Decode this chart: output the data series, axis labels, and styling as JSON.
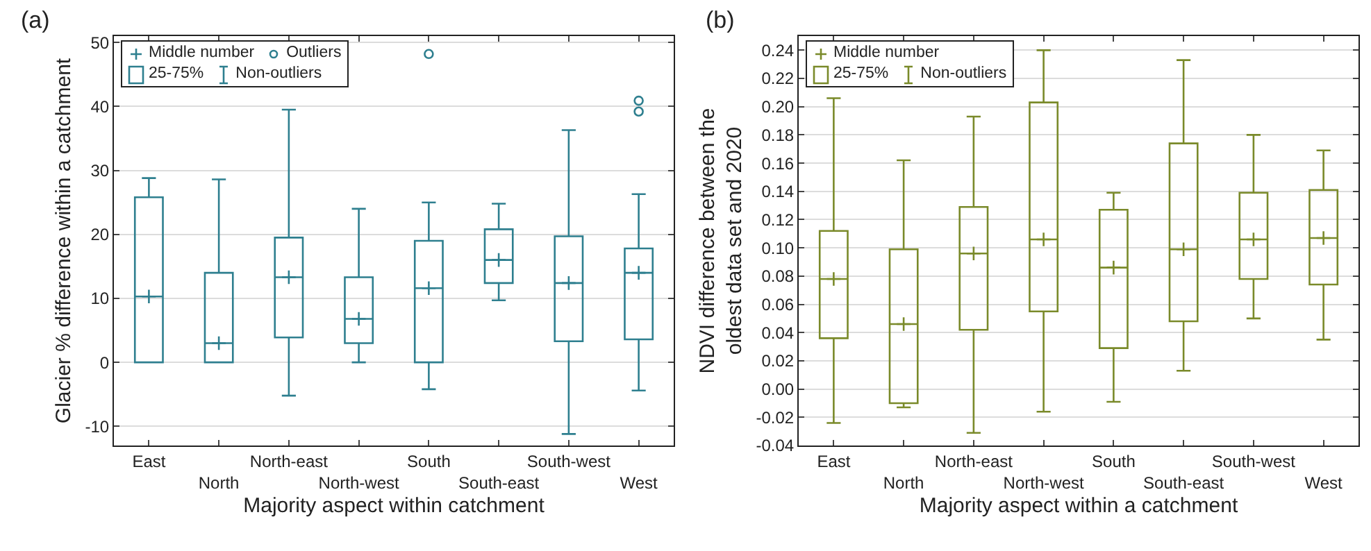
{
  "chart_data": [
    {
      "type": "box",
      "title": "(a)",
      "xlabel": "Majority aspect within catchment",
      "ylabel": "Glacier % difference within a catchment",
      "categories": [
        "East",
        "North",
        "North-east",
        "North-west",
        "South",
        "South-east",
        "South-west",
        "West"
      ],
      "color": "#2e7f8f",
      "boxes": [
        {
          "low": 0,
          "q1": 0,
          "median": 10.3,
          "q3": 25.8,
          "high": 28.8
        },
        {
          "low": 0,
          "q1": 0,
          "median": 3,
          "q3": 14,
          "high": 28.6
        },
        {
          "low": -5.2,
          "q1": 3.9,
          "median": 13.3,
          "q3": 19.5,
          "high": 39.5
        },
        {
          "low": 0,
          "q1": 3,
          "median": 6.8,
          "q3": 13.3,
          "high": 24
        },
        {
          "low": -4.2,
          "q1": 0,
          "median": 11.6,
          "q3": 19,
          "high": 25,
          "outliers": [
            48.2
          ]
        },
        {
          "low": 9.7,
          "q1": 12.4,
          "median": 16,
          "q3": 20.8,
          "high": 24.8
        },
        {
          "low": -11.2,
          "q1": 3.3,
          "median": 12.4,
          "q3": 19.7,
          "high": 36.3
        },
        {
          "low": -4.4,
          "q1": 3.6,
          "median": 14,
          "q3": 17.8,
          "high": 26.3,
          "outliers": [
            39.2,
            40.9
          ]
        }
      ],
      "ylim": [
        -13,
        51
      ],
      "yticks": [
        {
          "value": -10,
          "label": "-10"
        },
        0,
        10,
        20,
        30,
        40,
        50
      ],
      "grid": "y",
      "annotations": [
        "Middle number",
        "Outliers",
        "25-75%",
        "Non-outliers"
      ]
    },
    {
      "type": "box",
      "title": "(b)",
      "xlabel": "Majority aspect within a catchment",
      "ylabel": "NDVI difference between the oldest data set and 2020",
      "categories": [
        "East",
        "North",
        "North-east",
        "North-west",
        "South",
        "South-east",
        "South-west",
        "West"
      ],
      "color": "#7a8a2a",
      "boxes": [
        {
          "low": -0.024,
          "q1": 0.036,
          "median": 0.078,
          "q3": 0.112,
          "high": 0.206
        },
        {
          "low": -0.013,
          "q1": -0.01,
          "median": 0.046,
          "q3": 0.099,
          "high": 0.162
        },
        {
          "low": -0.031,
          "q1": 0.042,
          "median": 0.096,
          "q3": 0.129,
          "high": 0.193
        },
        {
          "low": -0.016,
          "q1": 0.055,
          "median": 0.106,
          "q3": 0.203,
          "high": 0.24
        },
        {
          "low": -0.009,
          "q1": 0.029,
          "median": 0.086,
          "q3": 0.127,
          "high": 0.139
        },
        {
          "low": 0.013,
          "q1": 0.048,
          "median": 0.099,
          "q3": 0.174,
          "high": 0.233
        },
        {
          "low": 0.05,
          "q1": 0.078,
          "median": 0.106,
          "q3": 0.139,
          "high": 0.18
        },
        {
          "low": 0.035,
          "q1": 0.074,
          "median": 0.107,
          "q3": 0.141,
          "high": 0.169
        }
      ],
      "ylim": [
        -0.04,
        0.25
      ],
      "yticks": [
        {
          "value": -0.04,
          "label": "-0.04"
        },
        {
          "value": -0.02,
          "label": "-0.02"
        },
        {
          "value": 0,
          "label": "0.00"
        },
        {
          "value": 0.02,
          "label": "0.02"
        },
        {
          "value": 0.04,
          "label": "0.04"
        },
        {
          "value": 0.06,
          "label": "0.06"
        },
        {
          "value": 0.08,
          "label": "0.08"
        },
        {
          "value": 0.1,
          "label": "0.10"
        },
        {
          "value": 0.12,
          "label": "0.12"
        },
        {
          "value": 0.14,
          "label": "0.14"
        },
        {
          "value": 0.16,
          "label": "0.16"
        },
        {
          "value": 0.18,
          "label": "0.18"
        },
        {
          "value": 0.2,
          "label": "0.20"
        },
        {
          "value": 0.22,
          "label": "0.22"
        },
        {
          "value": 0.24,
          "label": "0.24"
        }
      ],
      "grid": "y",
      "annotations": [
        "Middle number",
        "25-75%",
        "Non-outliers"
      ]
    }
  ]
}
